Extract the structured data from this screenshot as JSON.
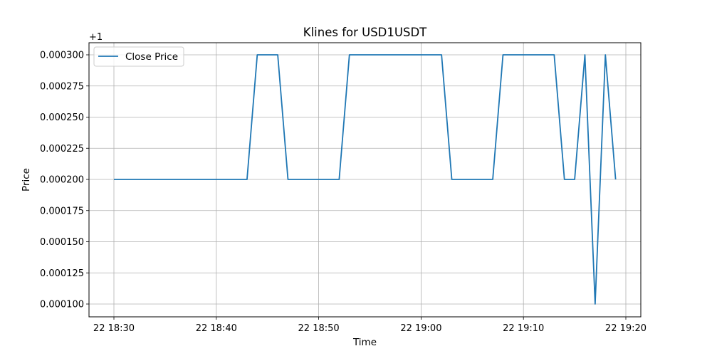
{
  "chart_data": {
    "type": "line",
    "title": "Klines for USD1USDT",
    "xlabel": "Time",
    "ylabel": "Price",
    "y_offset_label": "+1",
    "grid": true,
    "legend_position": "top-left",
    "line_color": "#1f77b4",
    "x_tick_labels": [
      "22 18:30",
      "22 18:40",
      "22 18:50",
      "22 19:00",
      "22 19:10",
      "22 19:20"
    ],
    "y_tick_labels": [
      "0.000100",
      "0.000125",
      "0.000150",
      "0.000175",
      "0.000200",
      "0.000225",
      "0.000250",
      "0.000275",
      "0.000300"
    ],
    "series": [
      {
        "name": "Close Price",
        "x": [
          "18:30",
          "18:31",
          "18:32",
          "18:33",
          "18:34",
          "18:35",
          "18:36",
          "18:37",
          "18:38",
          "18:39",
          "18:40",
          "18:41",
          "18:42",
          "18:43",
          "18:44",
          "18:45",
          "18:46",
          "18:47",
          "18:48",
          "18:49",
          "18:50",
          "18:51",
          "18:52",
          "18:53",
          "18:54",
          "18:55",
          "18:56",
          "18:57",
          "18:58",
          "18:59",
          "19:00",
          "19:01",
          "19:02",
          "19:03",
          "19:04",
          "19:05",
          "19:06",
          "19:07",
          "19:08",
          "19:09",
          "19:10",
          "19:11",
          "19:12",
          "19:13",
          "19:14",
          "19:15",
          "19:16",
          "19:17",
          "19:18",
          "19:19"
        ],
        "values": [
          1.0002,
          1.0002,
          1.0002,
          1.0002,
          1.0002,
          1.0002,
          1.0002,
          1.0002,
          1.0002,
          1.0002,
          1.0002,
          1.0002,
          1.0002,
          1.0002,
          1.0003,
          1.0003,
          1.0003,
          1.0002,
          1.0002,
          1.0002,
          1.0002,
          1.0002,
          1.0002,
          1.0003,
          1.0003,
          1.0003,
          1.0003,
          1.0003,
          1.0003,
          1.0003,
          1.0003,
          1.0003,
          1.0003,
          1.0002,
          1.0002,
          1.0002,
          1.0002,
          1.0002,
          1.0003,
          1.0003,
          1.0003,
          1.0003,
          1.0003,
          1.0003,
          1.0002,
          1.0002,
          1.0003,
          1.0001,
          1.0003,
          1.0002
        ]
      }
    ]
  }
}
